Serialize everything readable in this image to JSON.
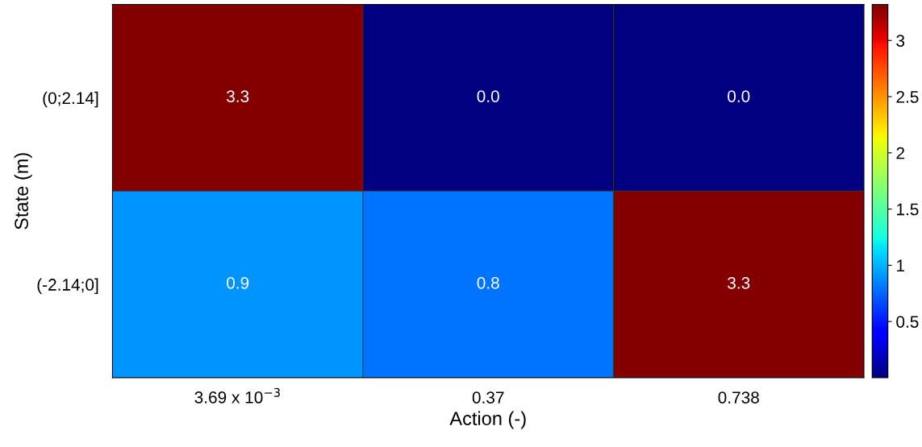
{
  "chart_data": {
    "type": "heatmap",
    "xlabel": "Action (-)",
    "ylabel": "State (m)",
    "categories": [
      "3.69 x 10$^{−3}$",
      "0.37",
      "0.738"
    ],
    "y_categories": [
      "(0;2.14]",
      "(-2.14;0]"
    ],
    "cells": [
      [
        3.3,
        0.0,
        0.0
      ],
      [
        0.9,
        0.8,
        3.3
      ]
    ],
    "cell_labels": [
      [
        "3.3",
        "0.0",
        "0.0"
      ],
      [
        "0.9",
        "0.8",
        "3.3"
      ]
    ],
    "clim": [
      0.0,
      3.32
    ],
    "cticks": [
      0.5,
      1,
      1.5,
      2,
      2.5,
      3
    ],
    "data_labels": true
  }
}
